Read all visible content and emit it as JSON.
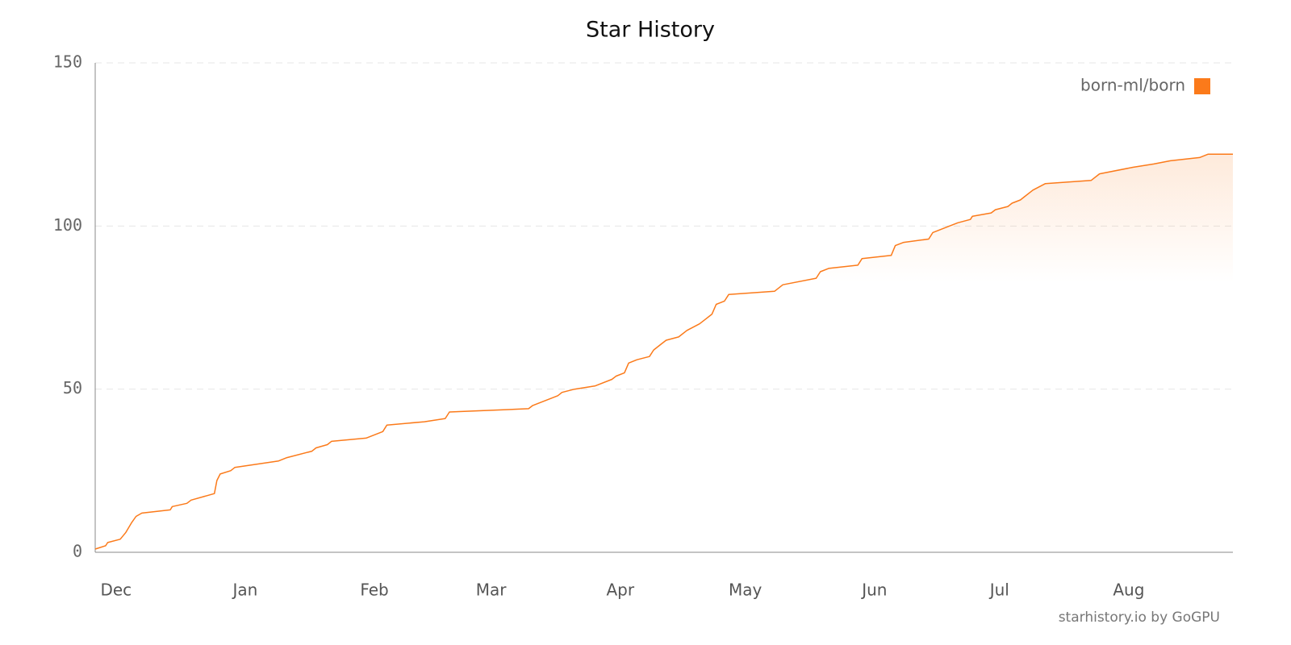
{
  "chart_data": {
    "type": "line",
    "title": "Star History",
    "x": [
      -5,
      -2.5,
      -2,
      1,
      2.3,
      3.7,
      4.8,
      6.2,
      13,
      13.5,
      17,
      18,
      23.6,
      24.2,
      25,
      27.5,
      28.5,
      39,
      41,
      47,
      48,
      50.7,
      51.7,
      60,
      64,
      65,
      74,
      79,
      80,
      99,
      100,
      106,
      107,
      110,
      115,
      119,
      120,
      122,
      123,
      125,
      128,
      129,
      131,
      132,
      135,
      137,
      140,
      141,
      143,
      144,
      146,
      147,
      158,
      160,
      168,
      169,
      171,
      178,
      179,
      186,
      187,
      189,
      195,
      196,
      200,
      202,
      205,
      205.5,
      210,
      211,
      214,
      215,
      217,
      218,
      220,
      223,
      234,
      236,
      244,
      249,
      253,
      260,
      262,
      268
    ],
    "series": [
      {
        "name": "born-ml/born",
        "color": "#fb7a1a",
        "values": [
          1,
          2,
          3,
          4,
          6,
          9,
          11,
          12,
          13,
          14,
          15,
          16,
          18,
          22,
          24,
          25,
          26,
          28,
          29,
          31,
          32,
          33,
          34,
          35,
          37,
          39,
          40,
          41,
          43,
          44,
          45,
          48,
          49,
          50,
          51,
          53,
          54,
          55,
          58,
          59,
          60,
          62,
          64,
          65,
          66,
          68,
          70,
          71,
          73,
          76,
          77,
          79,
          80,
          82,
          84,
          86,
          87,
          88,
          90,
          91,
          94,
          95,
          96,
          98,
          100,
          101,
          102,
          103,
          104,
          105,
          106,
          107,
          108,
          109,
          111,
          113,
          114,
          116,
          118,
          119,
          120,
          121,
          122,
          122
        ]
      }
    ],
    "xlim": [
      -5,
      268
    ],
    "xticks": [
      {
        "value": 0,
        "label": "Dec"
      },
      {
        "value": 31,
        "label": "Jan"
      },
      {
        "value": 62,
        "label": "Feb"
      },
      {
        "value": 90,
        "label": "Mar"
      },
      {
        "value": 121,
        "label": "Apr"
      },
      {
        "value": 151,
        "label": "May"
      },
      {
        "value": 182,
        "label": "Jun"
      },
      {
        "value": 212,
        "label": "Jul"
      },
      {
        "value": 243,
        "label": "Aug"
      }
    ],
    "ylim": [
      0,
      150
    ],
    "yticks": [
      0,
      50,
      100,
      150
    ],
    "grid": true,
    "legend": "top-right",
    "source": "starhistory.io by GoGPU"
  }
}
